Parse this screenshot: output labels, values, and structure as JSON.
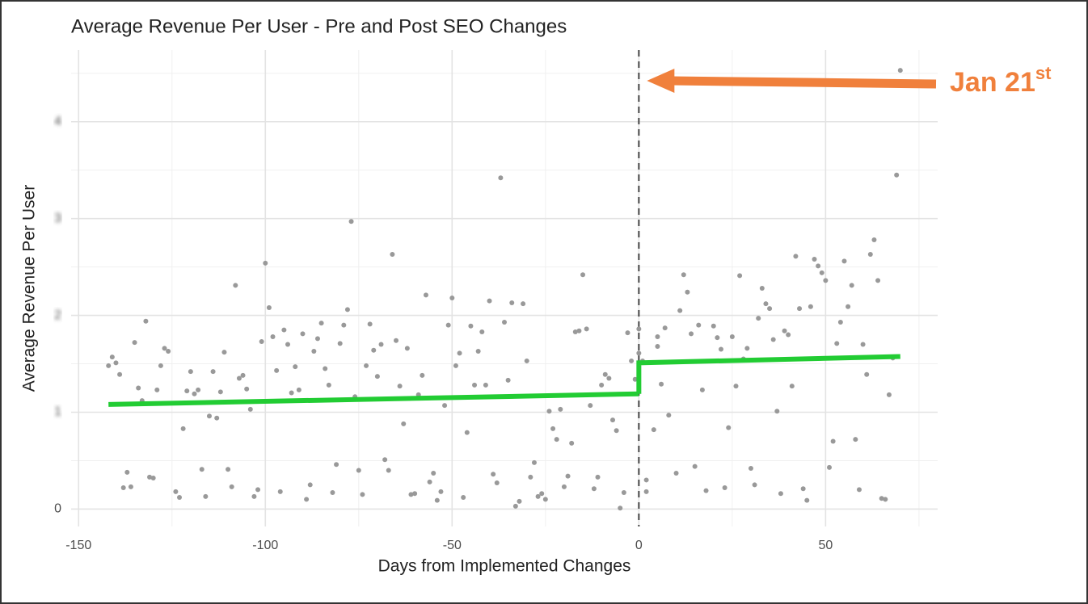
{
  "chart_data": {
    "type": "scatter",
    "title": "Average Revenue Per User - Pre and Post SEO Changes",
    "x_label": "Days from Implemented Changes",
    "y_label": "Average Revenue Per User",
    "xlim": [
      -152,
      80
    ],
    "ylim": [
      -0.18,
      4.74
    ],
    "xticks": [
      -150,
      -100,
      -50,
      0,
      50
    ],
    "yticks": [
      0,
      1,
      2,
      3,
      4
    ],
    "grid": true,
    "point_color": "#999999",
    "x": [
      -142,
      -141,
      -140,
      -139,
      -138,
      -137,
      -136,
      -135,
      -134,
      -133,
      -132,
      -131,
      -130,
      -129,
      -128,
      -127,
      -126,
      -124,
      -123,
      -122,
      -121,
      -120,
      -119,
      -118,
      -117,
      -116,
      -115,
      -114,
      -113,
      -112,
      -111,
      -110,
      -109,
      -108,
      -107,
      -106,
      -105,
      -104,
      -103,
      -102,
      -101,
      -100,
      -99,
      -98,
      -97,
      -96,
      -95,
      -94,
      -93,
      -92,
      -91,
      -90,
      -89,
      -88,
      -87,
      -86,
      -85,
      -84,
      -83,
      -82,
      -81,
      -80,
      -79,
      -78,
      -77,
      -76,
      -75,
      -74,
      -73,
      -72,
      -71,
      -70,
      -69,
      -68,
      -67,
      -66,
      -65,
      -64,
      -63,
      -62,
      -61,
      -60,
      -59,
      -58,
      -57,
      -56,
      -55,
      -54,
      -53,
      -52,
      -51,
      -50,
      -49,
      -48,
      -47,
      -46,
      -45,
      -44,
      -43,
      -42,
      -41,
      -40,
      -39,
      -38,
      -37,
      -36,
      -35,
      -34,
      -33,
      -32,
      -31,
      -30,
      -29,
      -28,
      -27,
      -26,
      -25,
      -24,
      -23,
      -22,
      -21,
      -20,
      -19,
      -18,
      -17,
      -16,
      -15,
      -14,
      -13,
      -12,
      -11,
      -10,
      -9,
      -8,
      -7,
      -6,
      -5,
      -4,
      -3,
      -2,
      -1,
      0,
      0,
      1,
      2,
      2,
      4,
      5,
      5,
      6,
      7,
      8,
      10,
      11,
      12,
      13,
      14,
      15,
      16,
      17,
      18,
      20,
      21,
      22,
      23,
      24,
      25,
      26,
      27,
      28,
      29,
      30,
      31,
      32,
      33,
      34,
      35,
      36,
      37,
      38,
      39,
      40,
      41,
      42,
      43,
      44,
      45,
      46,
      47,
      48,
      49,
      50,
      51,
      52,
      53,
      54,
      55,
      56,
      57,
      58,
      59,
      60,
      61,
      62,
      63,
      64,
      65,
      66,
      67,
      68,
      69,
      70
    ],
    "values": [
      1.48,
      1.57,
      1.51,
      1.39,
      0.22,
      0.38,
      0.23,
      1.72,
      1.25,
      1.12,
      1.94,
      0.33,
      0.32,
      1.23,
      1.48,
      1.66,
      1.63,
      0.18,
      0.12,
      0.83,
      1.22,
      1.42,
      1.19,
      1.23,
      0.41,
      0.13,
      0.96,
      1.42,
      0.94,
      1.21,
      1.62,
      0.41,
      0.23,
      2.31,
      1.35,
      1.38,
      1.24,
      1.03,
      0.13,
      0.2,
      1.73,
      2.54,
      2.08,
      1.78,
      1.43,
      0.18,
      1.85,
      1.7,
      1.2,
      1.47,
      1.23,
      1.81,
      0.1,
      0.25,
      1.63,
      1.76,
      1.92,
      1.45,
      1.28,
      0.17,
      0.46,
      1.71,
      1.9,
      2.06,
      2.97,
      1.16,
      0.4,
      0.15,
      1.48,
      1.91,
      1.64,
      1.37,
      1.7,
      0.51,
      0.4,
      2.63,
      1.74,
      1.27,
      0.88,
      1.66,
      0.15,
      0.16,
      1.18,
      1.38,
      2.21,
      0.28,
      0.37,
      0.09,
      0.18,
      1.07,
      1.9,
      2.18,
      1.48,
      1.61,
      0.12,
      0.79,
      1.89,
      1.28,
      1.63,
      1.83,
      1.28,
      2.15,
      0.36,
      0.27,
      3.42,
      1.93,
      1.33,
      2.13,
      0.03,
      0.08,
      2.12,
      1.53,
      0.33,
      0.48,
      0.13,
      0.16,
      0.1,
      1.01,
      0.83,
      0.72,
      1.03,
      0.23,
      0.34,
      0.68,
      1.83,
      1.84,
      2.42,
      1.86,
      1.07,
      0.21,
      0.33,
      1.28,
      1.39,
      1.35,
      0.92,
      0.81,
      0.01,
      0.17,
      1.82,
      1.53,
      1.34,
      1.61,
      1.86,
      1.53,
      0.3,
      0.18,
      0.82,
      1.78,
      1.68,
      1.29,
      1.87,
      0.97,
      0.37,
      2.05,
      2.42,
      2.24,
      1.81,
      0.44,
      1.9,
      1.23,
      0.19,
      1.89,
      1.77,
      1.65,
      0.22,
      0.84,
      1.78,
      1.27,
      2.41,
      1.55,
      1.66,
      0.42,
      0.25,
      1.97,
      2.28,
      2.12,
      2.07,
      1.75,
      1.01,
      0.16,
      1.84,
      1.8,
      1.27,
      2.61,
      2.07,
      0.21,
      0.09,
      2.09,
      2.58,
      2.51,
      2.44,
      2.36,
      0.43,
      0.7,
      1.71,
      1.93,
      2.56,
      2.09,
      2.31,
      0.72,
      0.2,
      1.7,
      1.39,
      2.63,
      2.78,
      2.36,
      0.11,
      0.1,
      1.18,
      1.56,
      3.45,
      4.53
    ],
    "lines": [
      {
        "color": "#22cc33",
        "x": [
          -142,
          0
        ],
        "values": [
          1.08,
          1.19
        ]
      },
      {
        "color": "#22cc33",
        "x": [
          0,
          0,
          70
        ],
        "values": [
          1.19,
          1.51,
          1.575
        ]
      }
    ],
    "vline": {
      "x": 0,
      "color": "#444444"
    },
    "annotation": {
      "text": "Jan 21",
      "superscript": "st",
      "color": "#f0803c"
    }
  }
}
